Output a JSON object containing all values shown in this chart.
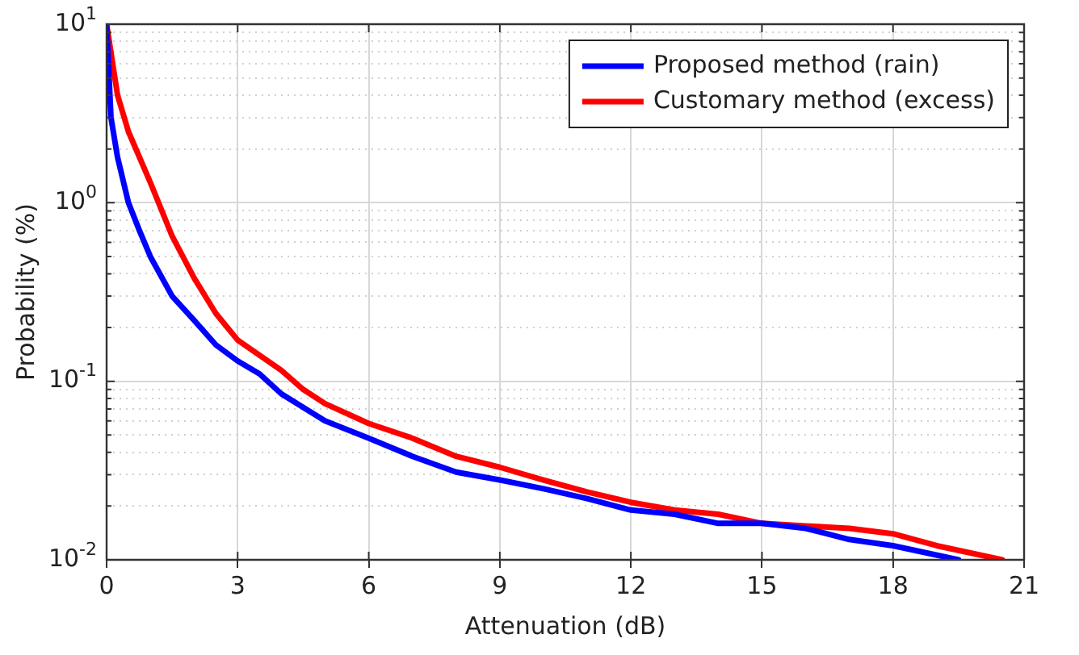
{
  "chart_data": {
    "type": "line",
    "xlabel": "Attenuation (dB)",
    "ylabel": "Probability (%)",
    "log": "y",
    "grid": true,
    "legend": "top right",
    "line_style": "solid",
    "marker": "none",
    "xlim": [
      0,
      21
    ],
    "xticks": [
      0,
      3,
      6,
      9,
      12,
      15,
      18,
      21
    ],
    "ylim": [
      0.01,
      10
    ],
    "yticks": [
      {
        "value": 0.01,
        "label": "10$^{-2}$"
      },
      {
        "value": 0.1,
        "label": "10$^{-1}$"
      },
      {
        "value": 1,
        "label": "10$^{0}$"
      },
      {
        "value": 10,
        "label": "10$^{1}$"
      }
    ],
    "series": [
      {
        "name": "Proposed method (rain)",
        "color": "#0000ff",
        "x": [
          0,
          0.1,
          0.25,
          0.5,
          0.75,
          1,
          1.5,
          2,
          2.5,
          3,
          3.5,
          4,
          5,
          6,
          7,
          8,
          9,
          10,
          11,
          12,
          13,
          14,
          15,
          16,
          17,
          18,
          19.5
        ],
        "values": [
          10,
          3,
          1.8,
          1.0,
          0.7,
          0.5,
          0.3,
          0.22,
          0.16,
          0.13,
          0.11,
          0.085,
          0.06,
          0.048,
          0.038,
          0.031,
          0.028,
          0.025,
          0.022,
          0.019,
          0.018,
          0.016,
          0.016,
          0.015,
          0.013,
          0.012,
          0.01
        ]
      },
      {
        "name": "Customary method (excess)",
        "color": "#ff0000",
        "x": [
          0,
          0.25,
          0.5,
          1,
          1.5,
          2,
          2.5,
          3,
          3.5,
          4,
          4.5,
          5,
          6,
          7,
          8,
          9,
          10,
          11,
          12,
          13,
          14,
          15,
          16,
          17,
          18,
          19,
          20.5
        ],
        "values": [
          10,
          4,
          2.5,
          1.3,
          0.65,
          0.38,
          0.24,
          0.17,
          0.14,
          0.115,
          0.09,
          0.075,
          0.058,
          0.048,
          0.038,
          0.033,
          0.028,
          0.024,
          0.021,
          0.019,
          0.018,
          0.016,
          0.0155,
          0.015,
          0.014,
          0.012,
          0.01
        ]
      }
    ]
  }
}
